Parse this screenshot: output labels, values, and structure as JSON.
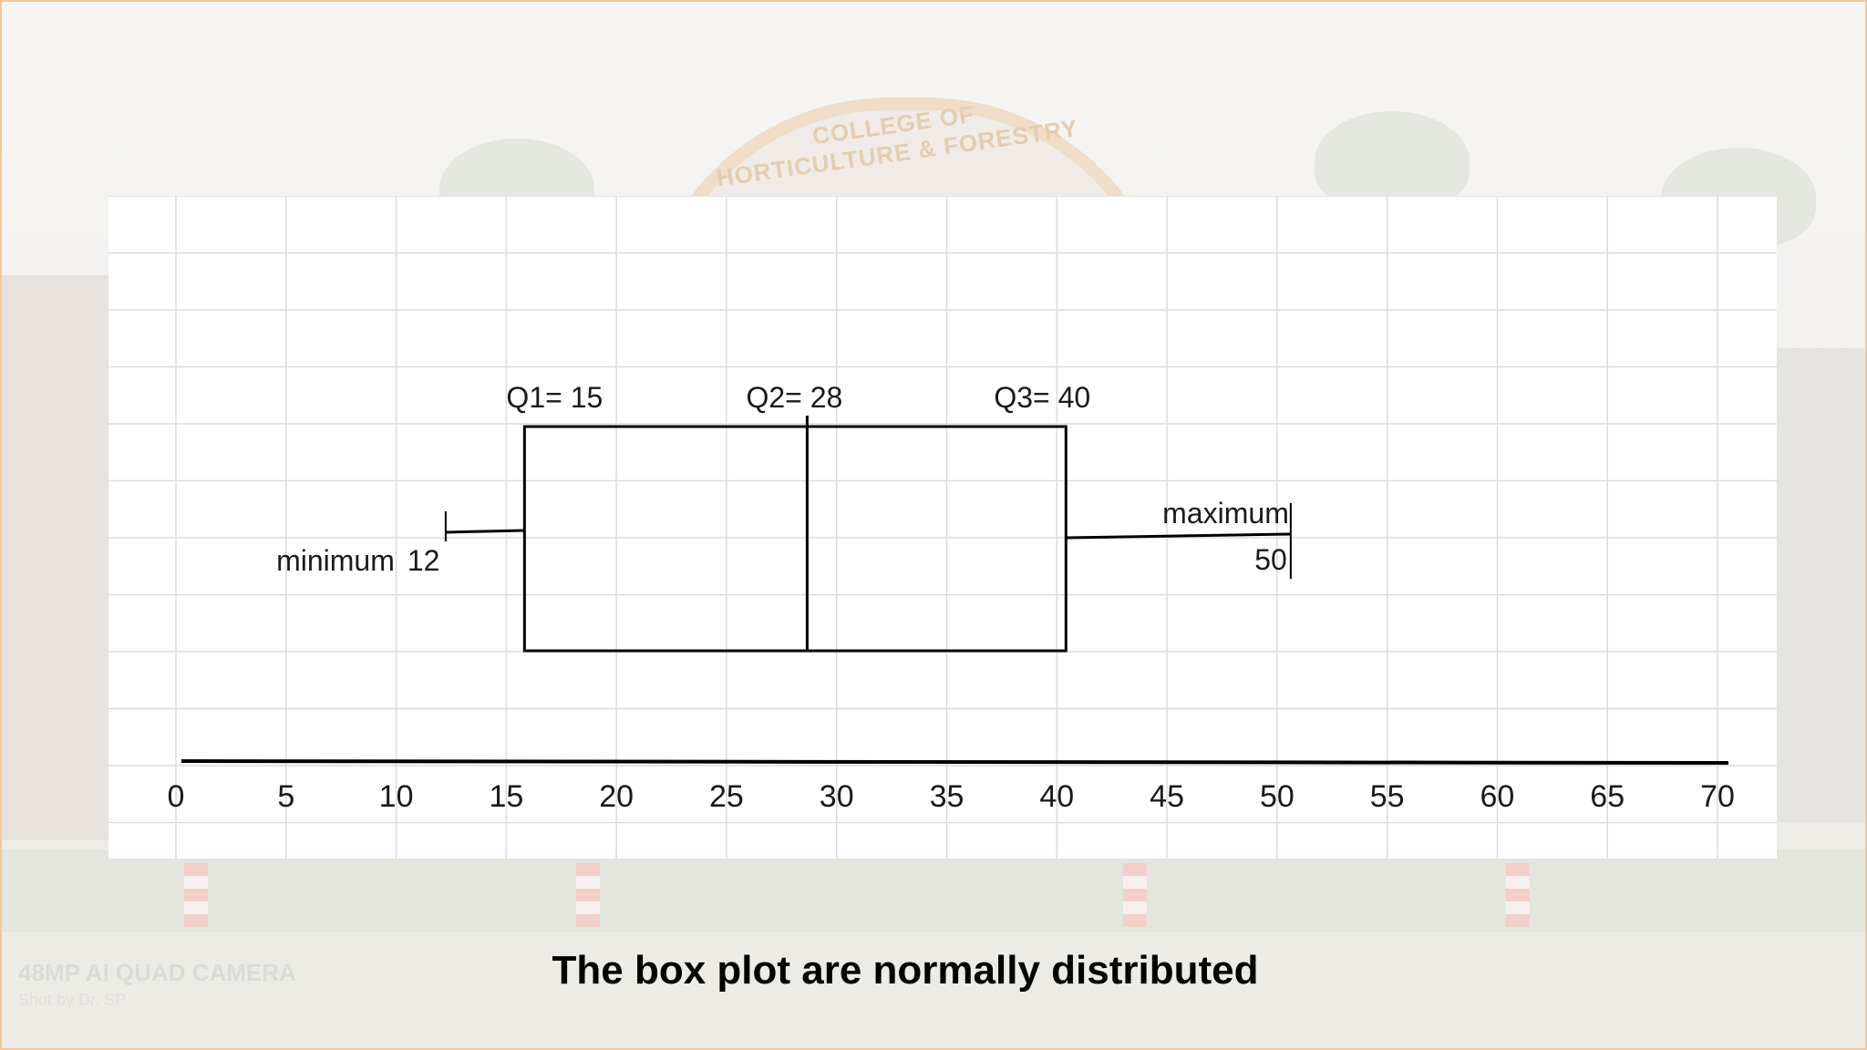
{
  "slide": {
    "caption": "The box plot are normally distributed",
    "background_text": {
      "arch": "COLLEGE OF HORTICULTURE & FORESTRY",
      "camera": "48MP AI QUAD CAMERA",
      "shot_by": "Shot by   Dr. SP"
    }
  },
  "chart_data": {
    "type": "box",
    "title": "",
    "xlabel": "",
    "ylabel": "",
    "xlim": [
      0,
      70
    ],
    "x_ticks": [
      0,
      5,
      10,
      15,
      20,
      25,
      30,
      35,
      40,
      45,
      50,
      55,
      60,
      65,
      70
    ],
    "grid": true,
    "box": {
      "minimum": 12,
      "q1": 15,
      "median": 28,
      "q3": 40,
      "maximum": 50
    },
    "annotations": {
      "q1": "Q1= 15",
      "q2": "Q2= 28",
      "q3": "Q3= 40",
      "minimum_label": "minimum",
      "minimum_value": "12",
      "maximum_label": "maximum",
      "maximum_value": "50"
    },
    "colors": {
      "box": "#000000",
      "grid": "#dcdcdc",
      "panel": "#ffffff"
    }
  }
}
